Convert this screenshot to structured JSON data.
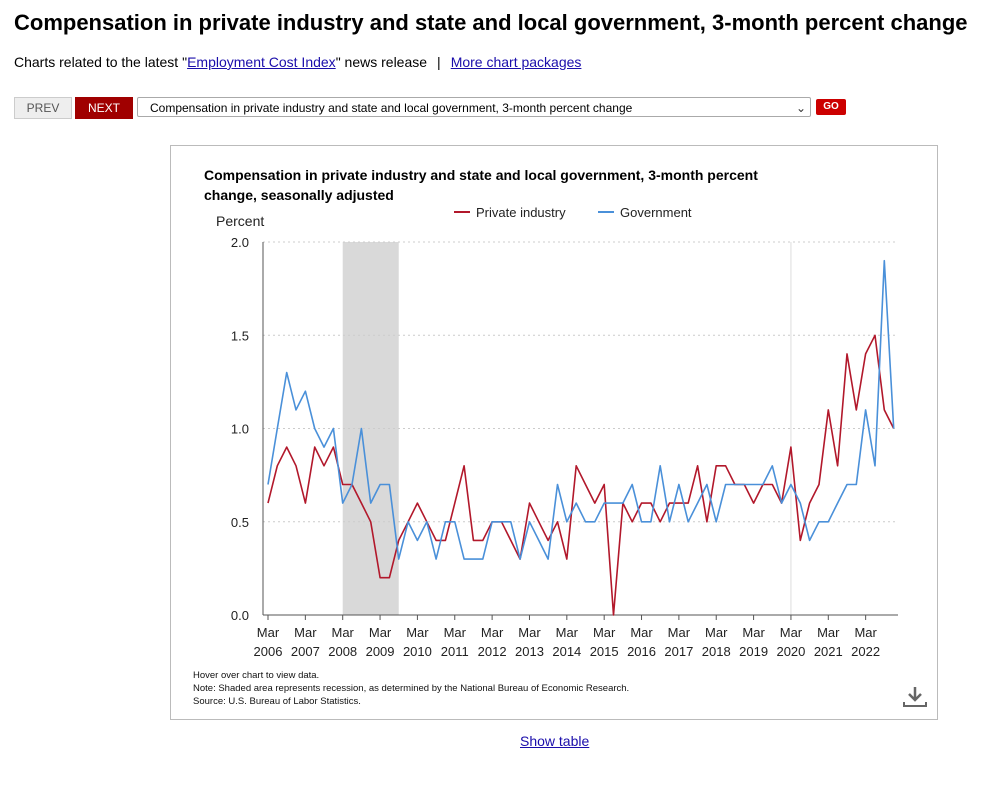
{
  "page": {
    "title": "Compensation in private industry and state and local government, 3-month percent change",
    "related_prefix": "Charts related to the latest \"",
    "related_link": "Employment Cost Index",
    "related_suffix": "\" news release",
    "separator": "|",
    "more_link": "More chart packages",
    "prev_label": "PREV",
    "next_label": "NEXT",
    "select_value": "Compensation in private industry and state and local government, 3-month percent change",
    "go_label": "GO",
    "show_table": "Show table"
  },
  "colors": {
    "private": "#b2182b",
    "government": "#4a90d9",
    "recession": "#d9d9d9"
  },
  "chart_data": {
    "type": "line",
    "title": "Compensation in private industry and state and local government, 3-month percent change, seasonally adjusted",
    "ylabel": "Percent",
    "ylim": [
      0,
      2.0
    ],
    "yticks": [
      0.0,
      0.5,
      1.0,
      1.5,
      2.0
    ],
    "grid": true,
    "legend_position": "top",
    "x_start": "2006-Q1",
    "x_ticks": [
      {
        "month": "Mar",
        "year": "2006"
      },
      {
        "month": "Mar",
        "year": "2007"
      },
      {
        "month": "Mar",
        "year": "2008"
      },
      {
        "month": "Mar",
        "year": "2009"
      },
      {
        "month": "Mar",
        "year": "2010"
      },
      {
        "month": "Mar",
        "year": "2011"
      },
      {
        "month": "Mar",
        "year": "2012"
      },
      {
        "month": "Mar",
        "year": "2013"
      },
      {
        "month": "Mar",
        "year": "2014"
      },
      {
        "month": "Mar",
        "year": "2015"
      },
      {
        "month": "Mar",
        "year": "2016"
      },
      {
        "month": "Mar",
        "year": "2017"
      },
      {
        "month": "Mar",
        "year": "2018"
      },
      {
        "month": "Mar",
        "year": "2019"
      },
      {
        "month": "Mar",
        "year": "2020"
      },
      {
        "month": "Mar",
        "year": "2021"
      },
      {
        "month": "Mar",
        "year": "2022"
      }
    ],
    "recession": [
      "2008-Q1",
      "2009-Q2"
    ],
    "marker_line": "2020-Q1",
    "series": [
      {
        "name": "Private industry",
        "values": [
          0.6,
          0.8,
          0.9,
          0.8,
          0.6,
          0.9,
          0.8,
          0.9,
          0.7,
          0.7,
          0.6,
          0.5,
          0.2,
          0.2,
          0.4,
          0.5,
          0.6,
          0.5,
          0.4,
          0.4,
          0.6,
          0.8,
          0.4,
          0.4,
          0.5,
          0.5,
          0.4,
          0.3,
          0.6,
          0.5,
          0.4,
          0.5,
          0.3,
          0.8,
          0.7,
          0.6,
          0.7,
          0.0,
          0.6,
          0.5,
          0.6,
          0.6,
          0.5,
          0.6,
          0.6,
          0.6,
          0.8,
          0.5,
          0.8,
          0.8,
          0.7,
          0.7,
          0.6,
          0.7,
          0.7,
          0.6,
          0.9,
          0.4,
          0.6,
          0.7,
          1.1,
          0.8,
          1.4,
          1.1,
          1.4,
          1.5,
          1.1,
          1.0
        ]
      },
      {
        "name": "Government",
        "values": [
          0.7,
          1.0,
          1.3,
          1.1,
          1.2,
          1.0,
          0.9,
          1.0,
          0.6,
          0.7,
          1.0,
          0.6,
          0.7,
          0.7,
          0.3,
          0.5,
          0.4,
          0.5,
          0.3,
          0.5,
          0.5,
          0.3,
          0.3,
          0.3,
          0.5,
          0.5,
          0.5,
          0.3,
          0.5,
          0.4,
          0.3,
          0.7,
          0.5,
          0.6,
          0.5,
          0.5,
          0.6,
          0.6,
          0.6,
          0.7,
          0.5,
          0.5,
          0.8,
          0.5,
          0.7,
          0.5,
          0.6,
          0.7,
          0.5,
          0.7,
          0.7,
          0.7,
          0.7,
          0.7,
          0.8,
          0.6,
          0.7,
          0.6,
          0.4,
          0.5,
          0.5,
          0.6,
          0.7,
          0.7,
          1.1,
          0.8,
          1.9,
          1.0
        ]
      }
    ],
    "notes": [
      "Hover over chart to view data.",
      "Note: Shaded area represents recession, as determined by the National Bureau of Economic Research.",
      "Source: U.S. Bureau of Labor Statistics."
    ],
    "download_icon": "download-icon"
  }
}
